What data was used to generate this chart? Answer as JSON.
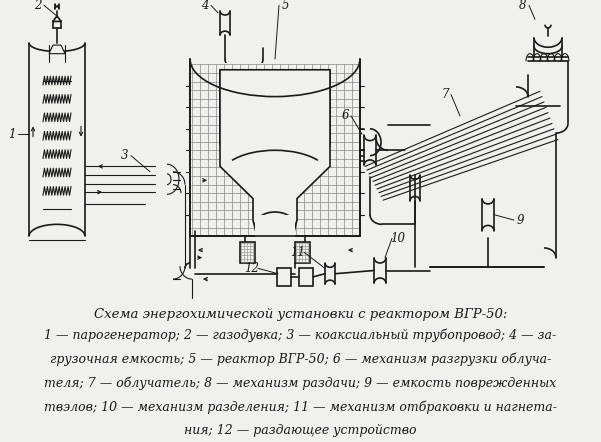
{
  "title": "Схема энергохимической установки с реактором ВГР-50:",
  "caption_lines": [
    "1 — парогенератор; 2 — газодувка; 3 — коаксиальный трубопровод; 4 — за-",
    "грузочная емкость; 5 — реактор ВГР-50; 6 — механизм разгрузки облуча-",
    "теля; 7 — облучатель; 8 — механизм раздачи; 9 — емкость поврежденных",
    "твэлов; 10 — механизм разделения; 11 — механизм отбраковки и нагнета-",
    "ния; 12 — раздающее устройство"
  ],
  "bg_color": "#f0f0ec",
  "text_color": "#1a1a1a",
  "title_fontsize": 9.5,
  "caption_fontsize": 9.0
}
